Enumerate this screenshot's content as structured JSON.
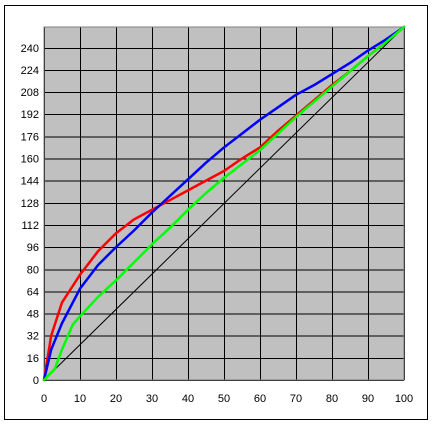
{
  "chart_data": {
    "type": "line",
    "title": "",
    "xlabel": "",
    "ylabel": "",
    "xlim": [
      0,
      100
    ],
    "ylim": [
      0,
      255
    ],
    "grid": true,
    "legend": "none",
    "x_ticks": [
      0,
      10,
      20,
      30,
      40,
      50,
      60,
      70,
      80,
      90,
      100
    ],
    "y_ticks": [
      0,
      16,
      32,
      48,
      64,
      80,
      96,
      112,
      128,
      144,
      160,
      176,
      192,
      208,
      224,
      240
    ],
    "x_tick_labels": [
      "0",
      "10",
      "20",
      "30",
      "40",
      "50",
      "60",
      "70",
      "80",
      "90",
      "100"
    ],
    "y_tick_labels": [
      "0",
      "16",
      "32",
      "48",
      "64",
      "80",
      "96",
      "112",
      "128",
      "144",
      "160",
      "176",
      "192",
      "208",
      "224",
      "240"
    ],
    "colors": {
      "plot_background": "#c0c0c0",
      "grid": "#000000",
      "frame": "#808080"
    },
    "series": [
      {
        "color": "#000000",
        "x": [
          0,
          100
        ],
        "y": [
          0,
          255
        ]
      },
      {
        "color": "#ff0000",
        "x": [
          0,
          2,
          5,
          8,
          10,
          15,
          20,
          25,
          30,
          35,
          40,
          45,
          50,
          55,
          60,
          65,
          70,
          75,
          80,
          85,
          90,
          95,
          100
        ],
        "y": [
          0,
          32,
          56,
          68,
          76,
          93,
          106,
          116,
          123,
          130,
          137,
          144,
          151,
          160,
          168,
          180,
          191,
          202,
          213,
          223,
          234,
          244,
          255
        ]
      },
      {
        "color": "#0000ff",
        "x": [
          0,
          2,
          5,
          10,
          15,
          20,
          25,
          30,
          35,
          40,
          45,
          50,
          55,
          60,
          65,
          70,
          75,
          80,
          85,
          90,
          95,
          100
        ],
        "y": [
          0,
          22,
          41,
          66,
          83,
          96,
          108,
          121,
          133,
          145,
          157,
          168,
          178,
          188,
          197,
          206,
          213,
          221,
          229,
          238,
          246,
          255
        ]
      },
      {
        "color": "#00ff00",
        "x": [
          0,
          3,
          5,
          8,
          10,
          15,
          20,
          25,
          30,
          35,
          40,
          45,
          50,
          55,
          60,
          65,
          70,
          75,
          80,
          85,
          90,
          95,
          100
        ],
        "y": [
          0,
          8,
          22,
          40,
          46,
          60,
          72,
          85,
          98,
          110,
          123,
          135,
          146,
          156,
          166,
          178,
          190,
          201,
          212,
          223,
          234,
          244,
          255
        ]
      }
    ]
  }
}
